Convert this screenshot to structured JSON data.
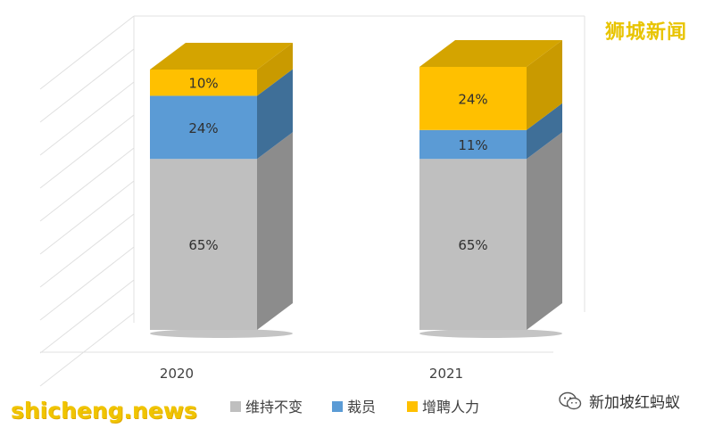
{
  "chart_data": {
    "type": "bar",
    "stacked": true,
    "style": "3d",
    "categories": [
      "2020",
      "2021"
    ],
    "series": [
      {
        "name": "维持不变",
        "values": [
          65,
          65
        ],
        "color": "#bfbfbf"
      },
      {
        "name": "裁员",
        "values": [
          24,
          11
        ],
        "color": "#5b9bd5"
      },
      {
        "name": "增聘人力",
        "values": [
          10,
          24
        ],
        "color": "#ffc000"
      }
    ],
    "value_format": "percent",
    "grid": true,
    "legend_position": "bottom"
  },
  "watermarks": {
    "top_right": "狮城新闻",
    "bottom_left": "shicheng.news",
    "bottom_right": "新加坡红蚂蚁"
  },
  "colors": {
    "side_gray": "#8c8c8c",
    "side_blue": "#3f6f98",
    "side_yellow": "#c99a00",
    "top_yellow": "#d4a400",
    "grid": "#e0e0e0"
  }
}
